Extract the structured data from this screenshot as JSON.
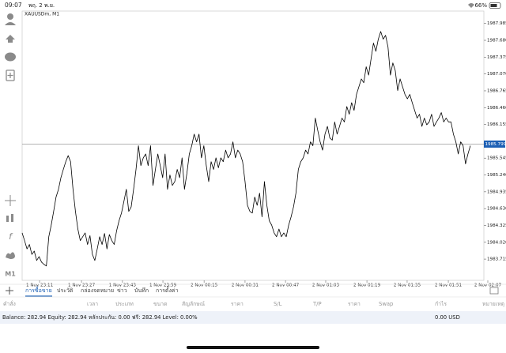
{
  "status_bar": {
    "time": "09:07",
    "date": "พฤ. 2 พ.ย.",
    "battery": "66%"
  },
  "toolbar": {
    "timeframe": "M1"
  },
  "chart_data": {
    "type": "line",
    "title": "XAUUSDm, M1",
    "color": "#000000",
    "grid": false,
    "values": [
      1984.19,
      1984.05,
      1983.9,
      1983.98,
      1983.8,
      1983.86,
      1983.69,
      1983.76,
      1983.66,
      1983.62,
      1983.59,
      1984.12,
      1984.33,
      1984.58,
      1984.84,
      1984.98,
      1985.19,
      1985.34,
      1985.48,
      1985.59,
      1985.48,
      1984.98,
      1984.58,
      1984.26,
      1984.05,
      1984.12,
      1984.19,
      1983.98,
      1984.14,
      1983.8,
      1983.69,
      1983.9,
      1984.12,
      1983.98,
      1984.18,
      1983.9,
      1984.16,
      1984.05,
      1983.98,
      1984.23,
      1984.41,
      1984.55,
      1984.76,
      1984.98,
      1984.58,
      1984.66,
      1984.98,
      1985.34,
      1985.77,
      1985.41,
      1985.55,
      1985.62,
      1985.41,
      1985.77,
      1985.05,
      1985.34,
      1985.62,
      1985.41,
      1985.19,
      1985.62,
      1984.98,
      1985.24,
      1985.05,
      1985.12,
      1985.34,
      1985.19,
      1985.55,
      1984.98,
      1985.27,
      1985.62,
      1985.77,
      1985.98,
      1985.84,
      1985.98,
      1985.55,
      1985.77,
      1985.41,
      1985.12,
      1985.48,
      1985.34,
      1985.55,
      1985.37,
      1985.55,
      1985.48,
      1985.69,
      1985.55,
      1985.62,
      1985.84,
      1985.55,
      1985.69,
      1985.62,
      1985.48,
      1985.12,
      1984.69,
      1984.58,
      1984.55,
      1984.84,
      1984.69,
      1984.91,
      1984.48,
      1985.12,
      1984.69,
      1984.41,
      1984.33,
      1984.19,
      1984.12,
      1984.26,
      1984.12,
      1984.19,
      1984.12,
      1984.33,
      1984.48,
      1984.66,
      1984.91,
      1985.34,
      1985.48,
      1985.55,
      1985.69,
      1985.62,
      1985.84,
      1985.77,
      1986.27,
      1986.05,
      1985.84,
      1985.69,
      1985.98,
      1986.12,
      1985.91,
      1985.87,
      1986.2,
      1985.98,
      1986.12,
      1986.27,
      1986.2,
      1986.48,
      1986.34,
      1986.55,
      1986.41,
      1986.7,
      1986.84,
      1986.98,
      1986.91,
      1987.2,
      1987.05,
      1987.34,
      1987.63,
      1987.48,
      1987.7,
      1987.84,
      1987.7,
      1987.77,
      1987.56,
      1987.05,
      1987.27,
      1987.13,
      1986.77,
      1986.98,
      1986.84,
      1986.7,
      1986.62,
      1986.7,
      1986.55,
      1986.41,
      1986.27,
      1986.34,
      1986.12,
      1986.27,
      1986.15,
      1986.2,
      1986.34,
      1986.12,
      1986.2,
      1986.27,
      1986.37,
      1986.2,
      1986.27,
      1986.2,
      1986.2,
      1985.98,
      1985.84,
      1985.62,
      1985.84,
      1985.77,
      1985.44,
      1985.62,
      1985.77
    ],
    "xlim": [
      0,
      192.2
    ],
    "xticks": [
      {
        "value": 7.2,
        "label": "1 Nov 23:11"
      },
      {
        "value": 24.5,
        "label": "1 Nov 23:27"
      },
      {
        "value": 41.4,
        "label": "1 Nov 23:43"
      },
      {
        "value": 58.1,
        "label": "1 Nov 23:59"
      },
      {
        "value": 75.1,
        "label": "2 Nov 00:15"
      },
      {
        "value": 92.0,
        "label": "2 Nov 00:31"
      },
      {
        "value": 108.7,
        "label": "2 Nov 00:47"
      },
      {
        "value": 125.3,
        "label": "2 Nov 01:03"
      },
      {
        "value": 142.3,
        "label": "2 Nov 01:19"
      },
      {
        "value": 158.9,
        "label": "2 Nov 01:35"
      },
      {
        "value": 175.9,
        "label": "2 Nov 01:51"
      },
      {
        "value": 192.2,
        "label": "2 Nov 02:07"
      }
    ],
    "ylim": [
      1983.33,
      1988.21
    ],
    "yticks": [
      1983.715,
      {
        "value": 1984.02,
        "label": "1984.020"
      },
      1984.325,
      {
        "value": 1984.63,
        "label": "1984.630"
      },
      1984.935,
      {
        "value": 1985.24,
        "label": "1985.240"
      },
      1985.545,
      1986.155,
      {
        "value": 1986.46,
        "label": "1986.460"
      },
      1986.765,
      {
        "value": 1987.07,
        "label": "1987.070"
      },
      1987.375,
      {
        "value": 1987.68,
        "label": "1987.680"
      },
      1987.985
    ],
    "current_price": 1985.799,
    "current_price_color": "#1c5fb4"
  },
  "tabs": [
    "การซื้อขาย",
    "ประวัติ",
    "กล่องจดหมาย",
    "ข่าว",
    "บันทึก",
    "การตั้งค่า"
  ],
  "table": {
    "columns": [
      "คำสั่ง",
      "เวลา",
      "ประเภท",
      "ขนาด",
      "สัญลักษณ์",
      "ราคา",
      "S/L",
      "T/P",
      "ราคา",
      "Swap",
      "กำไร",
      "หมายเหตุ"
    ]
  },
  "account": {
    "summary": "Balance: 282.94 Equity: 282.94 หลักประกัน: 0.00 ฟรี: 282.94 Level: 0.00%",
    "total": "0.00 USD"
  }
}
